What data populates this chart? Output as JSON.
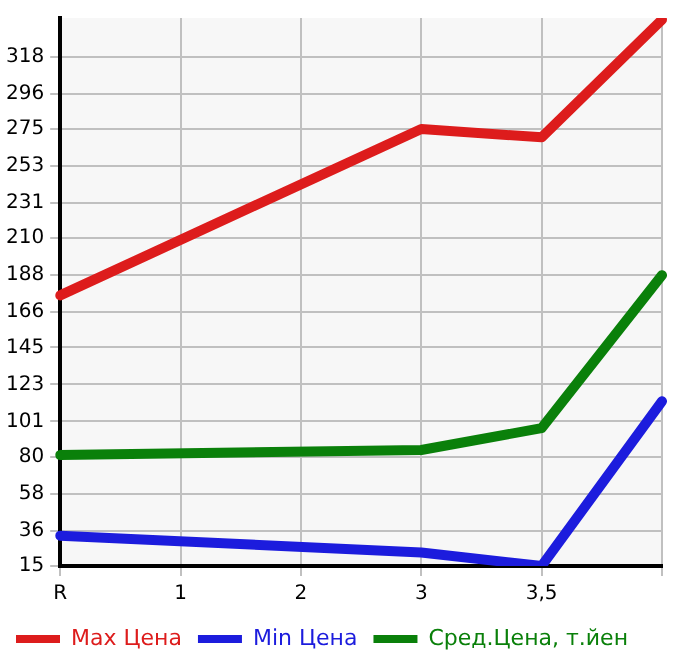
{
  "chart_data": {
    "type": "line",
    "categories": [
      "R",
      "1",
      "2",
      "3",
      "3,5",
      null
    ],
    "series": [
      {
        "name": "Max Цена",
        "color": "#dd1c1c",
        "values": [
          176,
          null,
          null,
          275,
          270,
          340
        ]
      },
      {
        "name": "Min Цена",
        "color": "#1c1cdd",
        "values": [
          33,
          null,
          null,
          23,
          15,
          113
        ]
      },
      {
        "name": "Сред.Цена, т.йен",
        "color": "#0a800a",
        "values": [
          81,
          null,
          null,
          84,
          97,
          188
        ]
      }
    ],
    "ylim": [
      15,
      341
    ],
    "yticks": [
      15,
      36,
      58,
      80,
      101,
      123,
      145,
      166,
      188,
      210,
      231,
      253,
      275,
      296,
      318
    ],
    "grid": true,
    "legend": "bottom",
    "marker": "none",
    "line_style": "solid"
  }
}
